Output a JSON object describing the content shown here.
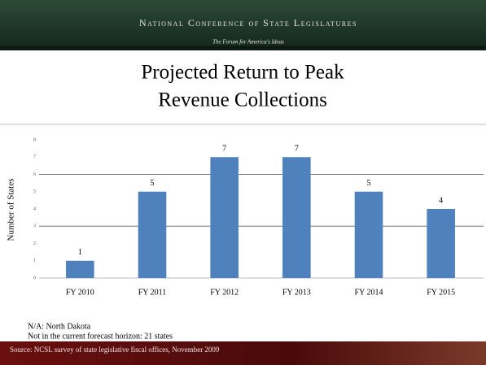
{
  "header": {
    "organization": "National Conference of State Legislatures",
    "tagline": "The Forum for America's Ideas"
  },
  "chart_data": {
    "type": "bar",
    "title": [
      "Projected Return to Peak",
      "Revenue Collections"
    ],
    "y_label": "Number of States",
    "categories": [
      "FY 2010",
      "FY 2011",
      "FY 2012",
      "FY 2013",
      "FY 2014",
      "FY 2015"
    ],
    "values": [
      1,
      5,
      7,
      7,
      5,
      4
    ],
    "color": "#4f81bd",
    "ylim": [
      0,
      8
    ],
    "yticks": [
      0,
      1,
      2,
      3,
      4,
      5,
      6,
      7,
      8
    ],
    "gridlines": [
      3,
      6
    ]
  },
  "notes": [
    "N/A: North Dakota",
    "Not in the current forecast horizon: 21 states"
  ],
  "source": "Source: NCSL survey of state legislative fiscal offices, November 2009"
}
